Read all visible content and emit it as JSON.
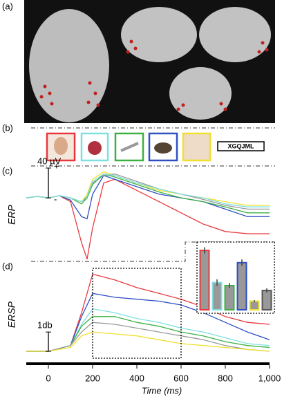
{
  "panels": [
    "(a)",
    "(b)",
    "(c)",
    "(d)"
  ],
  "stimulus_text": "XGQJML",
  "chart_data": [
    {
      "type": "line",
      "ylabel": "ERP",
      "scale_bar": {
        "value": 40,
        "label": "40 µV"
      },
      "plus": "+",
      "minus": "-",
      "xlim": [
        -100,
        1000
      ],
      "ylim": [
        -85,
        40
      ],
      "x": [
        -100,
        -50,
        0,
        50,
        100,
        150,
        175,
        200,
        250,
        300,
        400,
        500,
        600,
        700,
        800,
        900,
        1000
      ],
      "series": [
        {
          "color": "#e8383d",
          "values": [
            0,
            2,
            0,
            3,
            -5,
            -60,
            -82,
            -40,
            20,
            25,
            10,
            -5,
            -20,
            -35,
            -45,
            -48,
            -48
          ]
        },
        {
          "color": "#2f4fc4",
          "values": [
            0,
            2,
            0,
            3,
            -3,
            -25,
            -28,
            5,
            30,
            25,
            15,
            5,
            0,
            -5,
            -15,
            -25,
            -25
          ]
        },
        {
          "color": "#f0e030",
          "values": [
            0,
            2,
            0,
            3,
            0,
            -5,
            5,
            25,
            35,
            30,
            20,
            10,
            5,
            0,
            -5,
            -10,
            -10
          ]
        },
        {
          "color": "#999999",
          "values": [
            0,
            2,
            0,
            3,
            0,
            -5,
            0,
            20,
            30,
            32,
            22,
            12,
            5,
            -2,
            -10,
            -15,
            -15
          ]
        },
        {
          "color": "#3cb043",
          "values": [
            0,
            2,
            0,
            3,
            0,
            -8,
            0,
            18,
            32,
            28,
            18,
            8,
            0,
            -5,
            -12,
            -20,
            -20
          ]
        },
        {
          "color": "#7fe0e0",
          "values": [
            0,
            2,
            0,
            3,
            0,
            -5,
            2,
            22,
            32,
            30,
            20,
            12,
            5,
            0,
            -8,
            -12,
            -12
          ]
        }
      ]
    },
    {
      "type": "line",
      "ylabel": "ERSP",
      "xlabel": "Time (ms)",
      "scale_bar": {
        "value": 1,
        "label": "1db"
      },
      "xlim": [
        -100,
        1000
      ],
      "ylim": [
        -0.5,
        4.3
      ],
      "xticks": [
        0,
        200,
        400,
        600,
        800,
        {
          "value": 1000,
          "label": "1,000"
        }
      ],
      "x": [
        -100,
        0,
        100,
        150,
        200,
        300,
        400,
        500,
        600,
        700,
        800,
        900,
        1000
      ],
      "series": [
        {
          "color": "#e8383d",
          "values": [
            0,
            0,
            0.3,
            2,
            4,
            3.7,
            3.3,
            3,
            2.7,
            2.3,
            1.8,
            1.5,
            1.4
          ]
        },
        {
          "color": "#2f4fc4",
          "values": [
            0,
            0,
            0.3,
            1.8,
            3,
            2.8,
            2.7,
            2.6,
            2.4,
            2,
            1.5,
            1,
            0.6
          ]
        },
        {
          "color": "#7fe0e0",
          "values": [
            0,
            0,
            0.3,
            1.4,
            2.2,
            2,
            1.7,
            1.5,
            1.2,
            1,
            0.7,
            0.4,
            0.3
          ]
        },
        {
          "color": "#3cb043",
          "values": [
            0,
            0,
            0.3,
            1.3,
            1.8,
            1.8,
            1.5,
            1.3,
            1,
            0.8,
            0.5,
            0.3,
            0.2
          ]
        },
        {
          "color": "#999999",
          "values": [
            0,
            0,
            0.3,
            1,
            1.5,
            1.4,
            1.2,
            1,
            0.8,
            0.6,
            0.3,
            0.1,
            0
          ]
        },
        {
          "color": "#f0e030",
          "values": [
            0,
            0,
            0.2,
            0.8,
            1,
            0.9,
            0.8,
            0.6,
            0.4,
            0.3,
            0.2,
            0.1,
            0
          ]
        }
      ],
      "window": [
        200,
        600
      ]
    },
    {
      "type": "bar",
      "ylim": [
        0,
        3
      ],
      "values": [
        2.77,
        1.27,
        1.13,
        2.2,
        0.4,
        0.9
      ],
      "errors": [
        0.15,
        0.15,
        0.12,
        0.15,
        0.05,
        0.1
      ],
      "colors": [
        "#e8383d",
        "#7fe0e0",
        "#3cb043",
        "#2f4fc4",
        "#f0e030",
        "#555555"
      ],
      "fill": "#999999"
    }
  ]
}
